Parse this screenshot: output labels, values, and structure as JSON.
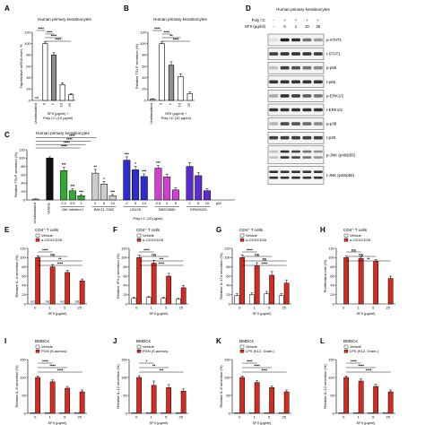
{
  "panels": {
    "A": {
      "label": "A",
      "title": "Human primary keratinocytes",
      "ylabel": "Tslp/relative mRNA level, %",
      "categories": [
        "Unstimulated",
        "0",
        "1",
        "10",
        "25"
      ],
      "values": [
        0,
        100,
        80,
        28,
        10
      ],
      "errors": [
        0,
        3,
        4,
        3,
        2
      ],
      "colors": [
        "#ffffff",
        "#ffffff",
        "#bdbdbd",
        "#ffffff",
        "#ffffff"
      ],
      "ylim": [
        0,
        120
      ],
      "yticks": [
        0,
        20,
        40,
        60,
        80,
        100,
        120
      ],
      "nd_label": "nd",
      "xlabel_line1": "SFII (μg/ml) +",
      "xlabel_line2": "Poly I:C (10 μg/ml)",
      "sig": [
        "****",
        "****",
        "****",
        "****"
      ]
    },
    "B": {
      "label": "B",
      "title": "Human primary keratinocytes",
      "ylabel": "Relative TSLP secretion (%)",
      "categories": [
        "Unstimulated",
        "0",
        "1",
        "10",
        "25"
      ],
      "values": [
        2,
        100,
        62,
        42,
        12
      ],
      "errors": [
        1,
        3,
        6,
        5,
        3
      ],
      "ylim": [
        0,
        120
      ],
      "yticks": [
        0,
        20,
        40,
        60,
        80,
        100,
        120
      ],
      "xlabel_line1": "SFII (μg/ml) +",
      "xlabel_line2": "Poly I:C (10 μg/ml)",
      "sig": [
        "****",
        "****",
        "**",
        "****"
      ]
    },
    "C": {
      "label": "C",
      "title": "Human primary keratinocytes",
      "ylabel": "Relative TSLP secretion (%)",
      "ylim": [
        0,
        120
      ],
      "yticks": [
        0,
        20,
        40,
        60,
        80,
        100,
        120
      ],
      "groups": [
        {
          "name": "Unstimulated",
          "color": "#ffffff",
          "x_labels": [
            ""
          ],
          "values": [
            2
          ],
          "errors": [
            1
          ]
        },
        {
          "name": "Vehicle",
          "color": "#111111",
          "x_labels": [
            ""
          ],
          "values": [
            100
          ],
          "errors": [
            3
          ]
        },
        {
          "name": "JAK inhibitor I",
          "color": "#33aa33",
          "x_labels": [
            "0.1",
            "0.5",
            "1"
          ],
          "values": [
            70,
            22,
            10
          ],
          "errors": [
            8,
            5,
            3
          ]
        },
        {
          "name": "BAY11-7082",
          "color": "#cccccc",
          "x_labels": [
            "2",
            "5",
            "10"
          ],
          "values": [
            64,
            38,
            10
          ],
          "errors": [
            9,
            6,
            3
          ]
        },
        {
          "name": "U0126",
          "color": "#2c2ccf",
          "x_labels": [
            "2",
            "5",
            "10"
          ],
          "values": [
            95,
            72,
            56
          ],
          "errors": [
            8,
            8,
            6
          ]
        },
        {
          "name": "SB203580",
          "color": "#d040d0",
          "x_labels": [
            "0.5",
            "2",
            "5"
          ],
          "values": [
            76,
            55,
            24
          ],
          "errors": [
            6,
            6,
            5
          ]
        },
        {
          "name": "SP600125",
          "color": "#5a2bd0",
          "x_labels": [
            "2",
            "5",
            "10"
          ],
          "values": [
            80,
            58,
            22
          ],
          "errors": [
            9,
            8,
            5
          ]
        }
      ],
      "unit": "μM",
      "xlabel": "Poly I:C (10 μg/ml)",
      "sig": [
        "****",
        "****",
        "****",
        "****",
        "***",
        "***",
        "***",
        "**",
        "*",
        "***",
        "***",
        "*",
        "***",
        "***"
      ]
    },
    "D": {
      "label": "D",
      "title": "Human primary keratinocytes",
      "header_row1_label": "Poly I:C",
      "header_row1": [
        "-",
        "+",
        "+",
        "+",
        "+"
      ],
      "header_row2_label": "SFII (μg/ml)",
      "header_row2": [
        "-",
        "0",
        "1",
        "10",
        "25"
      ],
      "bands": [
        {
          "name": "p-STAT1",
          "intensity": [
            0.05,
            0.95,
            0.85,
            0.55,
            0.35
          ]
        },
        {
          "name": "t-STAT1",
          "intensity": [
            0.8,
            0.85,
            0.85,
            0.85,
            0.8
          ]
        },
        {
          "name": "p-p65",
          "intensity": [
            0.2,
            0.8,
            0.7,
            0.55,
            0.45
          ]
        },
        {
          "name": "t-p65",
          "intensity": [
            0.85,
            0.85,
            0.85,
            0.85,
            0.85
          ]
        },
        {
          "name": "p-ERK1/2",
          "intensity": [
            0.3,
            0.85,
            0.8,
            0.65,
            0.55
          ]
        },
        {
          "name": "t-ERK1/2",
          "intensity": [
            0.85,
            0.85,
            0.85,
            0.85,
            0.85
          ]
        },
        {
          "name": "p-p38",
          "intensity": [
            0.25,
            0.75,
            0.7,
            0.6,
            0.45
          ]
        },
        {
          "name": "t-p38",
          "intensity": [
            0.8,
            0.8,
            0.8,
            0.8,
            0.8
          ]
        },
        {
          "name": "p-JNK (p46/p55)",
          "intensity": [
            0.2,
            0.85,
            0.75,
            0.55,
            0.4
          ]
        },
        {
          "name": "t-JNK (p46/p55)",
          "intensity": [
            0.85,
            0.85,
            0.85,
            0.85,
            0.85
          ]
        }
      ]
    },
    "E": {
      "label": "E",
      "title": "CD4⁺ T cells",
      "legend": [
        "Vehicle",
        "α-CD3/CD28"
      ],
      "ylabel": "Relative IL-4 secretion (%)",
      "xlabel": "SFII (μg/ml)",
      "categories": [
        "0",
        "1",
        "5",
        "25"
      ],
      "vehicle": [
        0,
        0,
        0,
        0
      ],
      "vehicle_err": [
        0,
        0,
        0,
        0
      ],
      "stim": [
        100,
        80,
        68,
        50
      ],
      "stim_err": [
        4,
        5,
        5,
        4
      ],
      "ylim": [
        0,
        120
      ],
      "yticks": [
        0,
        20,
        40,
        60,
        80,
        100,
        120
      ],
      "nd_label": "nd",
      "sig": [
        "****",
        "ns",
        "**",
        "****"
      ]
    },
    "F": {
      "label": "F",
      "title": "CD4⁺ T cells",
      "legend": [
        "Vehicle",
        "α-CD3/CD28"
      ],
      "ylabel": "Relative IFN-γ secretion (%)",
      "xlabel": "SFII (μg/ml)",
      "categories": [
        "0",
        "1",
        "5",
        "25"
      ],
      "vehicle": [
        12,
        14,
        12,
        10
      ],
      "vehicle_err": [
        2,
        2,
        2,
        2
      ],
      "stim": [
        100,
        88,
        60,
        35
      ],
      "stim_err": [
        5,
        6,
        6,
        5
      ],
      "ylim": [
        0,
        120
      ],
      "yticks": [
        0,
        20,
        40,
        60,
        80,
        100,
        120
      ],
      "sig": [
        "****",
        "ns",
        "***",
        "****"
      ]
    },
    "G": {
      "label": "G",
      "title": "CD4⁺ T cells",
      "legend": [
        "Vehicle",
        "α-CD3/CD28"
      ],
      "ylabel": "Relative IL-17a secretion (%)",
      "xlabel": "SFII (μg/ml)",
      "categories": [
        "0",
        "1",
        "5",
        "25"
      ],
      "vehicle": [
        18,
        20,
        22,
        18
      ],
      "vehicle_err": [
        4,
        4,
        5,
        4
      ],
      "stim": [
        100,
        82,
        62,
        45
      ],
      "stim_err": [
        6,
        7,
        8,
        7
      ],
      "ylim": [
        0,
        120
      ],
      "yticks": [
        0,
        20,
        40,
        60,
        80,
        100,
        120
      ],
      "sig": [
        "****",
        "ns",
        "ns",
        "****"
      ]
    },
    "H": {
      "label": "H",
      "title": "CD4⁺ T cells",
      "legend": [
        "Vehicle",
        "α-CD3/CD28"
      ],
      "ylabel": "Proliferation rate (%)",
      "xlabel": "SFII (μg/ml)",
      "categories": [
        "0",
        "1",
        "5",
        "25"
      ],
      "vehicle": [
        0,
        0,
        0,
        0
      ],
      "vehicle_err": [
        0,
        0,
        0,
        0
      ],
      "stim": [
        100,
        98,
        92,
        55
      ],
      "stim_err": [
        3,
        3,
        4,
        5
      ],
      "ylim": [
        0,
        120
      ],
      "yticks": [
        0,
        20,
        40,
        60,
        80,
        100,
        120
      ],
      "sig": [
        "ns",
        "ns",
        "**"
      ]
    },
    "I": {
      "label": "I",
      "title": "BMDCs",
      "legend": [
        "Vehicle",
        "PGN (S.aureus)"
      ],
      "ylabel": "Relative IL-6 secretion (%)",
      "xlabel": "SFII (μg/ml)",
      "categories": [
        "0",
        "1",
        "5",
        "25"
      ],
      "vehicle": [
        2,
        2,
        2,
        2
      ],
      "vehicle_err": [
        0,
        0,
        0,
        0
      ],
      "stim": [
        100,
        88,
        70,
        60
      ],
      "stim_err": [
        4,
        5,
        5,
        5
      ],
      "ylim": [
        0,
        150
      ],
      "yticks": [
        0,
        50,
        100,
        150
      ],
      "sig": [
        "****",
        "****",
        "****"
      ]
    },
    "J": {
      "label": "J",
      "title": "BMDCs",
      "legend": [
        "Vehicle",
        "PGN (S.aureus)"
      ],
      "ylabel": "Relative IL-12 secretion (%)",
      "xlabel": "SFII (μg/ml)",
      "categories": [
        "0",
        "1",
        "5",
        "25"
      ],
      "vehicle": [
        2,
        2,
        2,
        2
      ],
      "vehicle_err": [
        0,
        0,
        0,
        0
      ],
      "stim": [
        100,
        78,
        72,
        62
      ],
      "stim_err": [
        5,
        12,
        8,
        6
      ],
      "ylim": [
        0,
        150
      ],
      "yticks": [
        0,
        50,
        100,
        150
      ],
      "sig": [
        "*",
        "**",
        "***"
      ]
    },
    "K": {
      "label": "K",
      "title": "BMDCs",
      "legend": [
        "Vehicle",
        "LPS (K12, Gram-)"
      ],
      "ylabel": "Relative IL-6 secretion (%)",
      "xlabel": "SFII (μg/ml)",
      "categories": [
        "0",
        "1",
        "5",
        "25"
      ],
      "vehicle": [
        2,
        2,
        2,
        2
      ],
      "vehicle_err": [
        0,
        0,
        0,
        0
      ],
      "stim": [
        100,
        86,
        72,
        60
      ],
      "stim_err": [
        4,
        5,
        5,
        5
      ],
      "ylim": [
        0,
        150
      ],
      "yticks": [
        0,
        50,
        100,
        150
      ],
      "sig": [
        "****",
        "****",
        "****"
      ]
    },
    "L": {
      "label": "L",
      "title": "BMDCs",
      "legend": [
        "Vehicle",
        "LPS (K12, Gram-)"
      ],
      "ylabel": "Relative IL-12 secretion (%)",
      "xlabel": "SFII (μg/ml)",
      "categories": [
        "0",
        "1",
        "5",
        "25"
      ],
      "vehicle": [
        2,
        2,
        2,
        2
      ],
      "vehicle_err": [
        0,
        0,
        0,
        0
      ],
      "stim": [
        100,
        90,
        75,
        60
      ],
      "stim_err": [
        4,
        6,
        6,
        5
      ],
      "ylim": [
        0,
        150
      ],
      "yticks": [
        0,
        50,
        100,
        150
      ],
      "sig": [
        "****",
        "****",
        "****"
      ]
    }
  },
  "chart_data": [
    {
      "type": "bar",
      "panel": "A",
      "categories": [
        "Unstimulated",
        "0",
        "1",
        "10",
        "25"
      ],
      "values": [
        0,
        100,
        80,
        28,
        10
      ],
      "ylabel": "Tslp/relative mRNA level, %",
      "ylim": [
        0,
        120
      ]
    },
    {
      "type": "bar",
      "panel": "B",
      "categories": [
        "Unstimulated",
        "0",
        "1",
        "10",
        "25"
      ],
      "values": [
        2,
        100,
        62,
        42,
        12
      ],
      "ylabel": "Relative TSLP secretion (%)",
      "ylim": [
        0,
        120
      ]
    },
    {
      "type": "bar",
      "panel": "C",
      "categories": [
        "Unstimulated",
        "Vehicle",
        "JAK inhibitor I 0.1",
        "JAK inhibitor I 0.5",
        "JAK inhibitor I 1",
        "BAY11-7082 2",
        "BAY11-7082 5",
        "BAY11-7082 10",
        "U0126 2",
        "U0126 5",
        "U0126 10",
        "SB203580 0.5",
        "SB203580 2",
        "SB203580 5",
        "SP600125 2",
        "SP600125 5",
        "SP600125 10"
      ],
      "values": [
        2,
        100,
        70,
        22,
        10,
        64,
        38,
        10,
        95,
        72,
        56,
        76,
        55,
        24,
        80,
        58,
        22
      ],
      "ylabel": "Relative TSLP secretion (%)",
      "ylim": [
        0,
        120
      ]
    },
    {
      "type": "bar",
      "panel": "E",
      "categories": [
        "0",
        "1",
        "5",
        "25"
      ],
      "series": [
        {
          "name": "Vehicle",
          "values": [
            0,
            0,
            0,
            0
          ]
        },
        {
          "name": "α-CD3/CD28",
          "values": [
            100,
            80,
            68,
            50
          ]
        }
      ],
      "ylabel": "Relative IL-4 secretion (%)",
      "xlabel": "SFII (μg/ml)",
      "ylim": [
        0,
        120
      ]
    },
    {
      "type": "bar",
      "panel": "F",
      "categories": [
        "0",
        "1",
        "5",
        "25"
      ],
      "series": [
        {
          "name": "Vehicle",
          "values": [
            12,
            14,
            12,
            10
          ]
        },
        {
          "name": "α-CD3/CD28",
          "values": [
            100,
            88,
            60,
            35
          ]
        }
      ],
      "ylabel": "Relative IFN-γ secretion (%)",
      "xlabel": "SFII (μg/ml)",
      "ylim": [
        0,
        120
      ]
    },
    {
      "type": "bar",
      "panel": "G",
      "categories": [
        "0",
        "1",
        "5",
        "25"
      ],
      "series": [
        {
          "name": "Vehicle",
          "values": [
            18,
            20,
            22,
            18
          ]
        },
        {
          "name": "α-CD3/CD28",
          "values": [
            100,
            82,
            62,
            45
          ]
        }
      ],
      "ylabel": "Relative IL-17a secretion (%)",
      "xlabel": "SFII (μg/ml)",
      "ylim": [
        0,
        120
      ]
    },
    {
      "type": "bar",
      "panel": "H",
      "categories": [
        "0",
        "1",
        "5",
        "25"
      ],
      "series": [
        {
          "name": "Vehicle",
          "values": [
            0,
            0,
            0,
            0
          ]
        },
        {
          "name": "α-CD3/CD28",
          "values": [
            100,
            98,
            92,
            55
          ]
        }
      ],
      "ylabel": "Proliferation rate (%)",
      "xlabel": "SFII (μg/ml)",
      "ylim": [
        0,
        120
      ]
    },
    {
      "type": "bar",
      "panel": "I",
      "categories": [
        "0",
        "1",
        "5",
        "25"
      ],
      "series": [
        {
          "name": "Vehicle",
          "values": [
            2,
            2,
            2,
            2
          ]
        },
        {
          "name": "PGN (S.aureus)",
          "values": [
            100,
            88,
            70,
            60
          ]
        }
      ],
      "ylabel": "Relative IL-6 secretion (%)",
      "xlabel": "SFII (μg/ml)",
      "ylim": [
        0,
        150
      ]
    },
    {
      "type": "bar",
      "panel": "J",
      "categories": [
        "0",
        "1",
        "5",
        "25"
      ],
      "series": [
        {
          "name": "Vehicle",
          "values": [
            2,
            2,
            2,
            2
          ]
        },
        {
          "name": "PGN (S.aureus)",
          "values": [
            100,
            78,
            72,
            62
          ]
        }
      ],
      "ylabel": "Relative IL-12 secretion (%)",
      "xlabel": "SFII (μg/ml)",
      "ylim": [
        0,
        150
      ]
    },
    {
      "type": "bar",
      "panel": "K",
      "categories": [
        "0",
        "1",
        "5",
        "25"
      ],
      "series": [
        {
          "name": "Vehicle",
          "values": [
            2,
            2,
            2,
            2
          ]
        },
        {
          "name": "LPS (K12, Gram-)",
          "values": [
            100,
            86,
            72,
            60
          ]
        }
      ],
      "ylabel": "Relative IL-6 secretion (%)",
      "xlabel": "SFII (μg/ml)",
      "ylim": [
        0,
        150
      ]
    },
    {
      "type": "bar",
      "panel": "L",
      "categories": [
        "0",
        "1",
        "5",
        "25"
      ],
      "series": [
        {
          "name": "Vehicle",
          "values": [
            2,
            2,
            2,
            2
          ]
        },
        {
          "name": "LPS (K12, Gram-)",
          "values": [
            100,
            90,
            75,
            60
          ]
        }
      ],
      "ylabel": "Relative IL-12 secretion (%)",
      "xlabel": "SFII (μg/ml)",
      "ylim": [
        0,
        150
      ]
    }
  ],
  "colors": {
    "stim_red": "#d42a20",
    "vehicle": "#ffffff",
    "axis": "#000000",
    "band": "#1a1a1a"
  }
}
